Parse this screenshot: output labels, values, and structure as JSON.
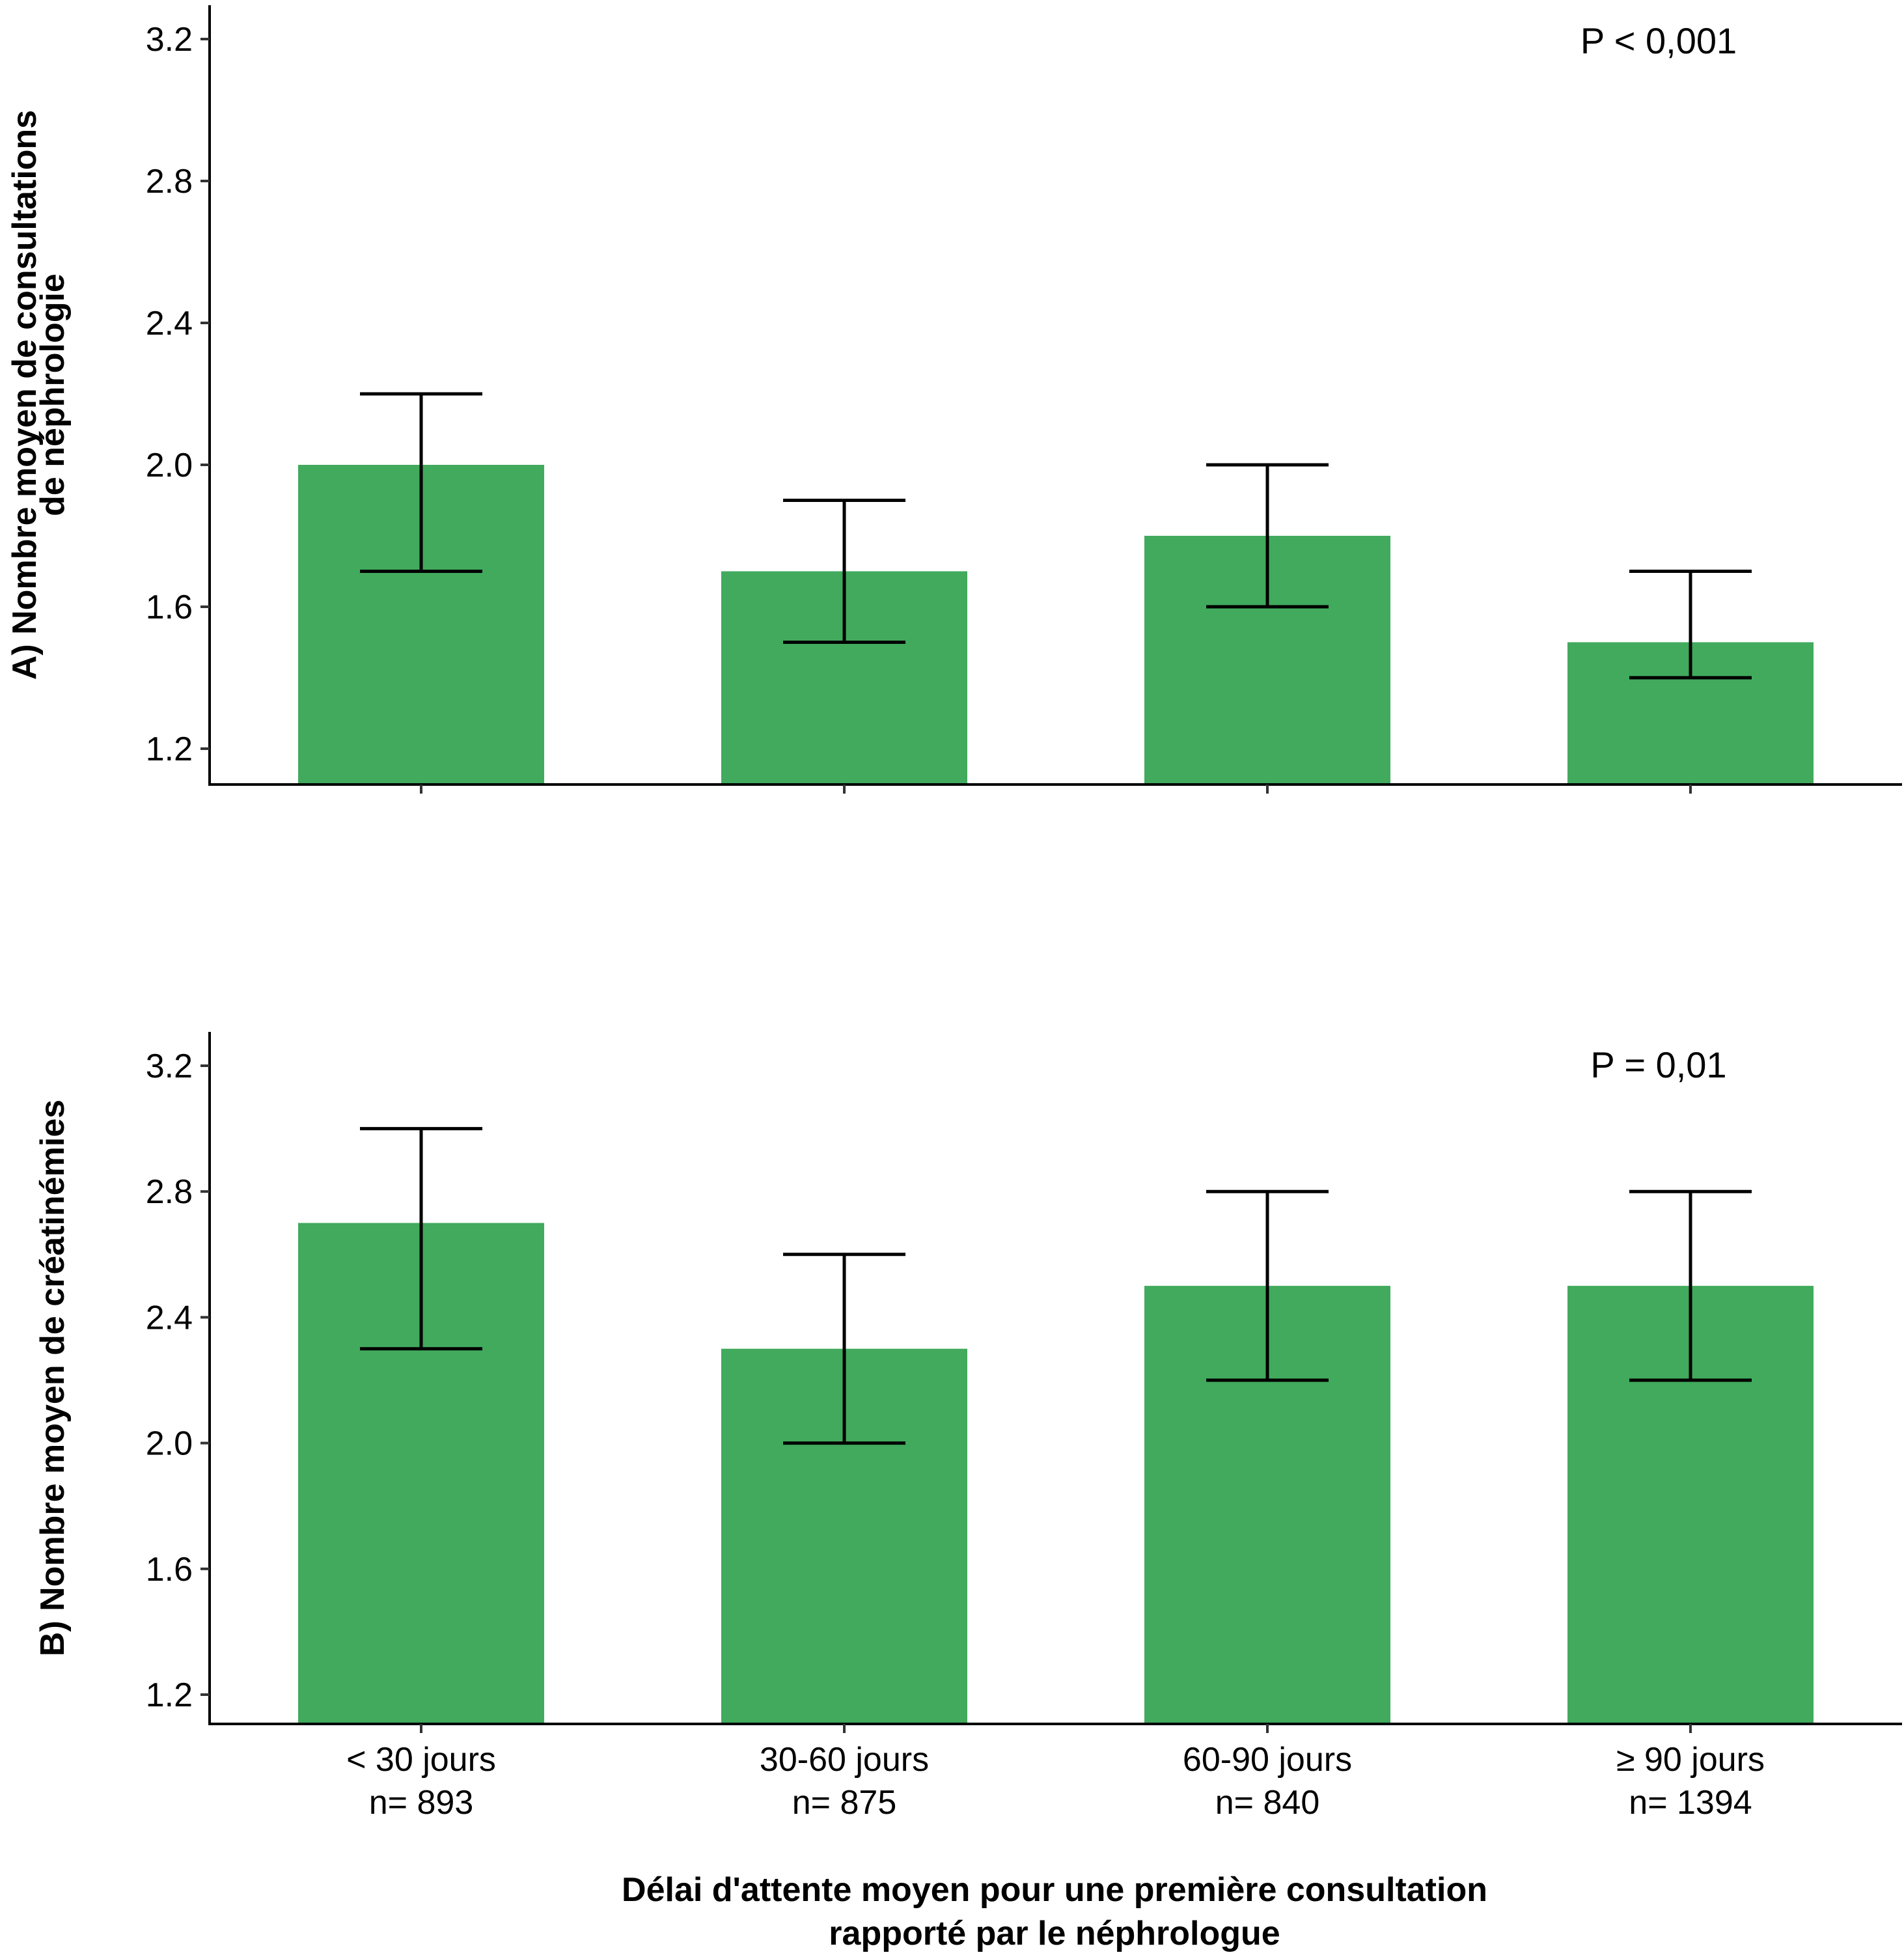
{
  "chart_data": [
    {
      "panel": "A",
      "type": "bar",
      "ylabel": [
        "A) Nombre moyen de consultations",
        "de néphrologie"
      ],
      "annotation": "P < 0,001",
      "yticks": [
        1.2,
        1.6,
        2.0,
        2.4,
        2.8,
        3.2
      ],
      "ytick_labels": [
        "1.2",
        "1.6",
        "2.0",
        "2.4",
        "2.8",
        "3.2"
      ],
      "ylim": [
        1.1,
        3.3
      ],
      "categories": [
        "< 30 jours",
        "30-60 jours",
        "60-90 jours",
        "≥ 90 jours"
      ],
      "values": [
        2.0,
        1.7,
        1.8,
        1.5
      ],
      "error_low": [
        1.7,
        1.5,
        1.6,
        1.4
      ],
      "error_high": [
        2.2,
        1.9,
        2.0,
        1.7
      ],
      "bar_color": "#41AA5D",
      "show_x_labels": false
    },
    {
      "panel": "B",
      "type": "bar",
      "ylabel": [
        "B) Nombre moyen de créatinémies"
      ],
      "annotation": "P = 0,01",
      "yticks": [
        1.2,
        1.6,
        2.0,
        2.4,
        2.8,
        3.2
      ],
      "ytick_labels": [
        "1.2",
        "1.6",
        "2.0",
        "2.4",
        "2.8",
        "3.2"
      ],
      "ylim": [
        1.1,
        3.3
      ],
      "categories": [
        "< 30 jours",
        "30-60 jours",
        "60-90 jours",
        "≥ 90 jours"
      ],
      "category_n": [
        "n= 893",
        "n= 875",
        "n= 840",
        "n= 1394"
      ],
      "values": [
        2.7,
        2.3,
        2.5,
        2.5
      ],
      "error_low": [
        2.3,
        2.0,
        2.2,
        2.2
      ],
      "error_high": [
        3.0,
        2.6,
        2.8,
        2.8
      ],
      "bar_color": "#41AA5D",
      "show_x_labels": true
    }
  ],
  "xlabel": [
    "Délai d'attente moyen pour une première consultation",
    "rapporté par le néphrologue"
  ]
}
